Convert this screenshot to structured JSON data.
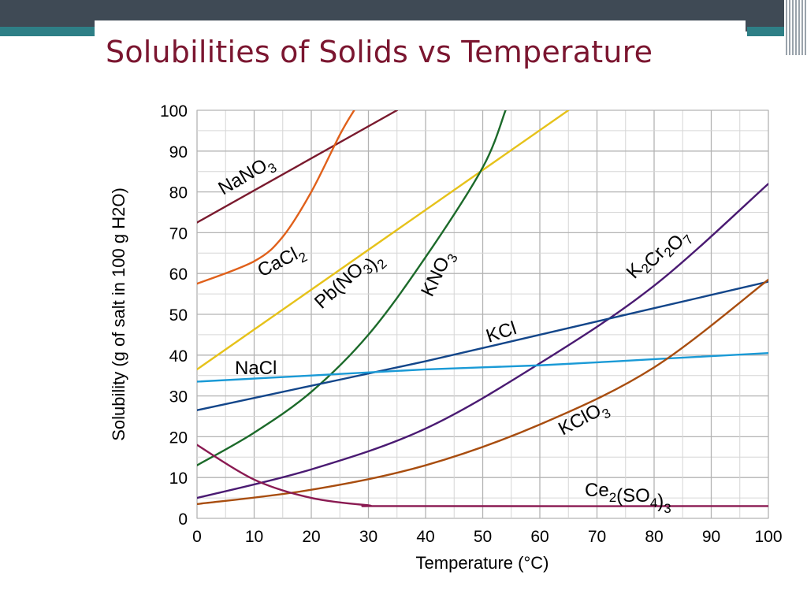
{
  "slide": {
    "title": "Solubilities of Solids vs Temperature"
  },
  "chart_data": {
    "type": "line",
    "xlabel": "Temperature (°C)",
    "ylabel": "Solubility (g of salt in 100 g H2O)",
    "xlim": [
      0,
      100
    ],
    "ylim": [
      0,
      100
    ],
    "xticks": [
      "0",
      "10",
      "20",
      "30",
      "40",
      "50",
      "60",
      "70",
      "80",
      "90",
      "100"
    ],
    "yticks": [
      "0",
      "10",
      "20",
      "30",
      "40",
      "50",
      "60",
      "70",
      "80",
      "90",
      "100"
    ],
    "grid": true,
    "series": [
      {
        "name": "NaNO3",
        "color": "#7a1a2e",
        "x": [
          0,
          35
        ],
        "y": [
          72.5,
          100
        ]
      },
      {
        "name": "CaCl2",
        "color": "#e0601a",
        "x": [
          0,
          10,
          15,
          20,
          25,
          27.5
        ],
        "y": [
          57.5,
          63,
          69,
          80,
          94,
          100
        ]
      },
      {
        "name": "Pb(NO3)2",
        "color": "#e6c21a",
        "x": [
          0,
          65
        ],
        "y": [
          36.5,
          100
        ]
      },
      {
        "name": "KNO3",
        "color": "#1c6a2a",
        "x": [
          0,
          10,
          20,
          30,
          40,
          50,
          54
        ],
        "y": [
          13,
          21,
          31,
          45,
          64,
          86,
          100
        ]
      },
      {
        "name": "K2Cr2O7",
        "color": "#4a1a72",
        "x": [
          0,
          20,
          40,
          60,
          80,
          100
        ],
        "y": [
          5,
          12,
          22,
          38,
          57,
          82
        ]
      },
      {
        "name": "KCl",
        "color": "#13468a",
        "x": [
          0,
          20,
          40,
          60,
          80,
          100
        ],
        "y": [
          26.5,
          32.5,
          38.5,
          45,
          51.5,
          58
        ]
      },
      {
        "name": "NaCl",
        "color": "#1a9ad6",
        "x": [
          0,
          20,
          40,
          60,
          80,
          100
        ],
        "y": [
          33.5,
          35,
          36.5,
          37.5,
          39,
          40.5
        ]
      },
      {
        "name": "KClO3",
        "color": "#a84d0f",
        "x": [
          0,
          20,
          40,
          60,
          80,
          100
        ],
        "y": [
          3.5,
          7,
          13,
          23,
          37,
          58.5
        ]
      },
      {
        "name": "Ce2(SO4)3",
        "color": "#8a1a52",
        "x": [
          0,
          10,
          20,
          30,
          35,
          100
        ],
        "y": [
          18,
          9.5,
          5,
          3.2,
          3,
          3
        ]
      }
    ]
  }
}
